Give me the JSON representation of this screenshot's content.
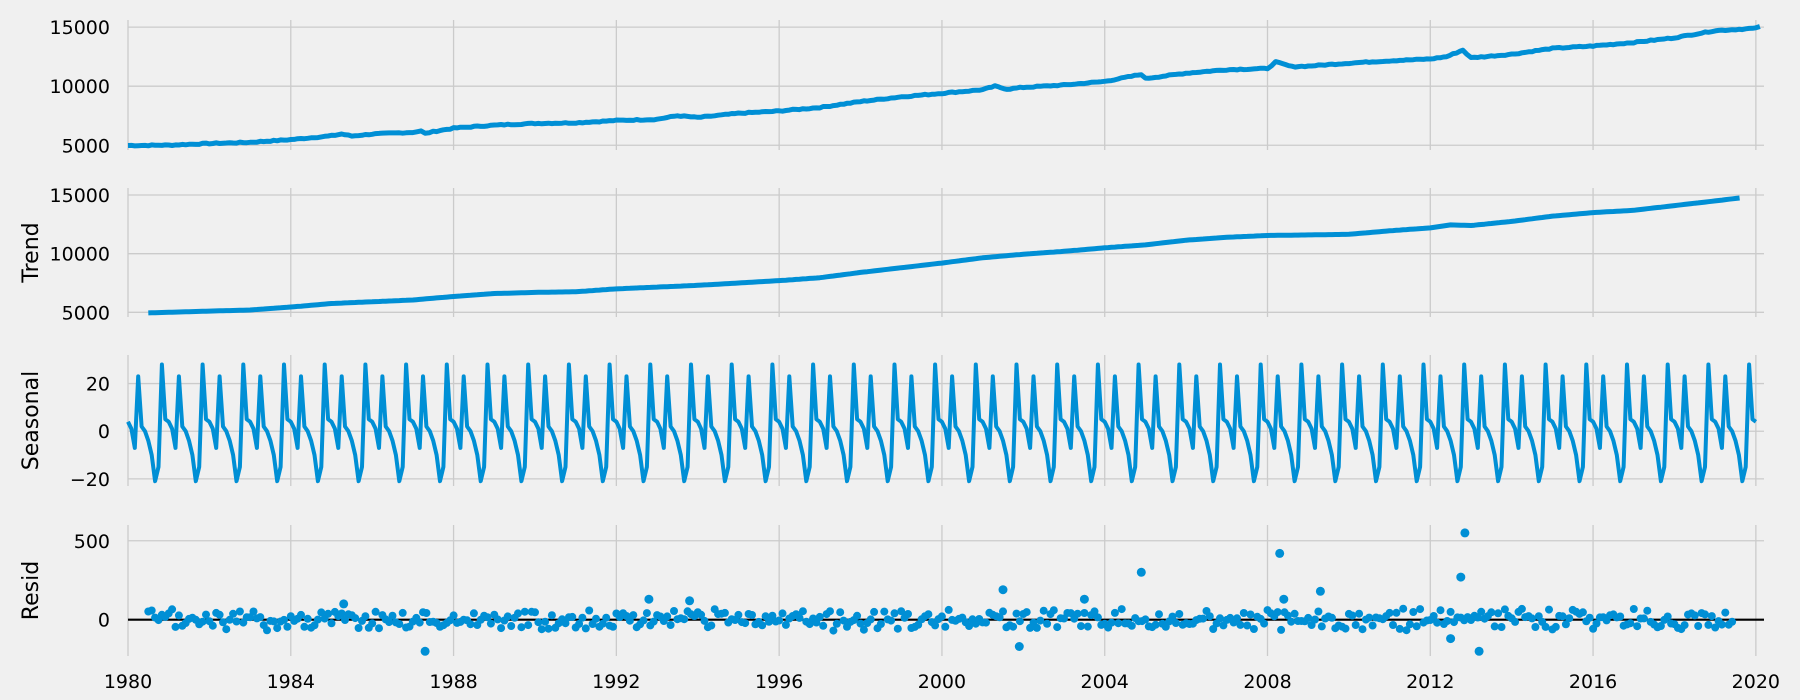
{
  "colors": {
    "background": "#f0f0f0",
    "series": "#008fd5",
    "grid": "#cbcbcb",
    "zero_line": "#000000"
  },
  "chart_data": [
    {
      "type": "line",
      "ylabel": "",
      "xlim": [
        1980,
        2020.2
      ],
      "ylim": [
        4600,
        15600
      ],
      "yticks": [
        5000,
        10000,
        15000
      ],
      "grid": true,
      "series": [
        {
          "x": [
            1980,
            1981,
            1982,
            1983,
            1984,
            1985,
            1985.25,
            1985.5,
            1986,
            1987,
            1987.2,
            1987.3,
            1987.5,
            1988,
            1989,
            1990,
            1991,
            1992,
            1993,
            1993.5,
            1994,
            1995,
            1996,
            1997,
            1998,
            1999,
            2000,
            2001,
            2001.3,
            2001.6,
            2002,
            2003,
            2004,
            2004.9,
            2005,
            2006,
            2007,
            2008,
            2008.2,
            2008.6,
            2009,
            2010,
            2011,
            2012,
            2012.4,
            2012.8,
            2013,
            2014,
            2015,
            2016,
            2017,
            2018,
            2019,
            2020,
            2020.1
          ],
          "y": [
            4980,
            5010,
            5150,
            5250,
            5480,
            5800,
            5950,
            5780,
            5950,
            6100,
            6200,
            6000,
            6150,
            6450,
            6700,
            6850,
            6900,
            7100,
            7200,
            7500,
            7350,
            7700,
            7900,
            8200,
            8700,
            9100,
            9400,
            9700,
            10000,
            9750,
            9900,
            10100,
            10400,
            11000,
            10650,
            11100,
            11400,
            11500,
            12050,
            11650,
            11700,
            11950,
            12150,
            12300,
            12500,
            13050,
            12400,
            12700,
            13200,
            13400,
            13700,
            14100,
            14700,
            14900,
            15050
          ]
        }
      ]
    },
    {
      "type": "line",
      "ylabel": "Trend",
      "xlim": [
        1980,
        2020.2
      ],
      "ylim": [
        4600,
        15600
      ],
      "yticks": [
        5000,
        10000,
        15000
      ],
      "grid": true,
      "series": [
        {
          "x": [
            1980.5,
            1981,
            1982,
            1983,
            1984,
            1985,
            1986,
            1987,
            1988,
            1989,
            1990,
            1991,
            1992,
            1993,
            1994,
            1995,
            1996,
            1997,
            1998,
            1999,
            2000,
            2001,
            2002,
            2003,
            2004,
            2005,
            2006,
            2007,
            2008,
            2009,
            2010,
            2011,
            2012,
            2012.5,
            2013,
            2014,
            2015,
            2016,
            2017,
            2018,
            2019,
            2019.6
          ],
          "y": [
            4950,
            5000,
            5100,
            5200,
            5450,
            5750,
            5900,
            6050,
            6350,
            6600,
            6700,
            6750,
            7000,
            7150,
            7300,
            7500,
            7700,
            7950,
            8400,
            8800,
            9200,
            9650,
            9950,
            10200,
            10500,
            10750,
            11150,
            11400,
            11550,
            11600,
            11650,
            11950,
            12200,
            12450,
            12400,
            12750,
            13200,
            13500,
            13700,
            14100,
            14500,
            14750
          ]
        }
      ]
    },
    {
      "type": "line",
      "ylabel": "Seasonal",
      "xlim": [
        1980,
        2020.2
      ],
      "ylim": [
        -23,
        32
      ],
      "yticks": [
        -20,
        0,
        20
      ],
      "grid": true,
      "period_start": 1980,
      "series": [
        {
          "monthly_pattern": [
            4,
            1,
            -7,
            23,
            2,
            0,
            -4,
            -10,
            -21,
            -15,
            28,
            5
          ]
        }
      ]
    },
    {
      "type": "scatter",
      "ylabel": "Resid",
      "xlim": [
        1980,
        2020.2
      ],
      "ylim": [
        -230,
        600
      ],
      "yticks": [
        0,
        500
      ],
      "grid": true,
      "baseline": 0,
      "series": [
        {
          "outliers": [
            {
              "x": 1985.3,
              "y": 100
            },
            {
              "x": 1987.3,
              "y": -200
            },
            {
              "x": 1992.8,
              "y": 130
            },
            {
              "x": 1993.8,
              "y": 120
            },
            {
              "x": 2001.5,
              "y": 190
            },
            {
              "x": 2001.9,
              "y": -170
            },
            {
              "x": 2003.5,
              "y": 130
            },
            {
              "x": 2004.9,
              "y": 300
            },
            {
              "x": 2008.3,
              "y": 420
            },
            {
              "x": 2008.4,
              "y": 130
            },
            {
              "x": 2009.3,
              "y": 180
            },
            {
              "x": 2012.5,
              "y": -120
            },
            {
              "x": 2012.75,
              "y": 270
            },
            {
              "x": 2012.85,
              "y": 550
            },
            {
              "x": 2013.2,
              "y": -200
            }
          ]
        }
      ]
    }
  ],
  "x_ticks": [
    "1980",
    "1984",
    "1988",
    "1992",
    "1996",
    "2000",
    "2004",
    "2008",
    "2012",
    "2016",
    "2020"
  ]
}
